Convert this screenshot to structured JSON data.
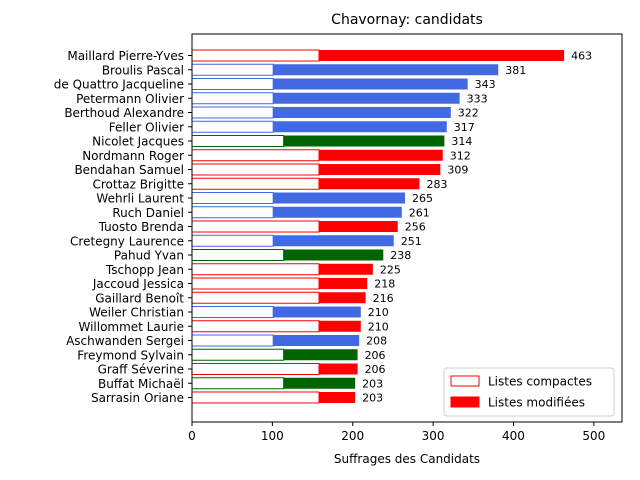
{
  "chart_data": {
    "type": "bar",
    "orientation": "horizontal",
    "title": "Chavornay: candidats",
    "xlabel": "Suffrages des Candidats",
    "ylabel": "",
    "xlim": [
      0,
      535
    ],
    "xticks": [
      0,
      100,
      200,
      300,
      400,
      500
    ],
    "grid": false,
    "legend_position": "bottom-right",
    "colors": {
      "red": "#ff0000",
      "blue": "#4169e1",
      "green": "#006400"
    },
    "legend": [
      {
        "label": "Listes compactes",
        "style": "outline",
        "color": "#ff0000"
      },
      {
        "label": "Listes modifiées",
        "style": "filled",
        "color": "#ff0000"
      }
    ],
    "candidates": [
      {
        "name": "Maillard Pierre-Yves",
        "compact": 158,
        "total": 463,
        "group": "red"
      },
      {
        "name": "Broulis Pascal",
        "compact": 101,
        "total": 381,
        "group": "blue"
      },
      {
        "name": "de Quattro Jacqueline",
        "compact": 101,
        "total": 343,
        "group": "blue"
      },
      {
        "name": "Petermann Olivier",
        "compact": 101,
        "total": 333,
        "group": "blue"
      },
      {
        "name": "Berthoud Alexandre",
        "compact": 101,
        "total": 322,
        "group": "blue"
      },
      {
        "name": "Feller Olivier",
        "compact": 101,
        "total": 317,
        "group": "blue"
      },
      {
        "name": "Nicolet Jacques",
        "compact": 114,
        "total": 314,
        "group": "green"
      },
      {
        "name": "Nordmann Roger",
        "compact": 158,
        "total": 312,
        "group": "red"
      },
      {
        "name": "Bendahan Samuel",
        "compact": 158,
        "total": 309,
        "group": "red"
      },
      {
        "name": "Crottaz Brigitte",
        "compact": 158,
        "total": 283,
        "group": "red"
      },
      {
        "name": "Wehrli Laurent",
        "compact": 101,
        "total": 265,
        "group": "blue"
      },
      {
        "name": "Ruch Daniel",
        "compact": 101,
        "total": 261,
        "group": "blue"
      },
      {
        "name": "Tuosto Brenda",
        "compact": 158,
        "total": 256,
        "group": "red"
      },
      {
        "name": "Cretegny Laurence",
        "compact": 101,
        "total": 251,
        "group": "blue"
      },
      {
        "name": "Pahud Yvan",
        "compact": 114,
        "total": 238,
        "group": "green"
      },
      {
        "name": "Tschopp Jean",
        "compact": 158,
        "total": 225,
        "group": "red"
      },
      {
        "name": "Jaccoud Jessica",
        "compact": 158,
        "total": 218,
        "group": "red"
      },
      {
        "name": "Gaillard Benoît",
        "compact": 158,
        "total": 216,
        "group": "red"
      },
      {
        "name": "Weiler Christian",
        "compact": 101,
        "total": 210,
        "group": "blue"
      },
      {
        "name": "Willommet Laurie",
        "compact": 158,
        "total": 210,
        "group": "red"
      },
      {
        "name": "Aschwanden Sergei",
        "compact": 101,
        "total": 208,
        "group": "blue"
      },
      {
        "name": "Freymond Sylvain",
        "compact": 114,
        "total": 206,
        "group": "green"
      },
      {
        "name": "Graff Séverine",
        "compact": 158,
        "total": 206,
        "group": "red"
      },
      {
        "name": "Buffat Michaël",
        "compact": 114,
        "total": 203,
        "group": "green"
      },
      {
        "name": "Sarrasin Oriane",
        "compact": 158,
        "total": 203,
        "group": "red"
      }
    ]
  }
}
